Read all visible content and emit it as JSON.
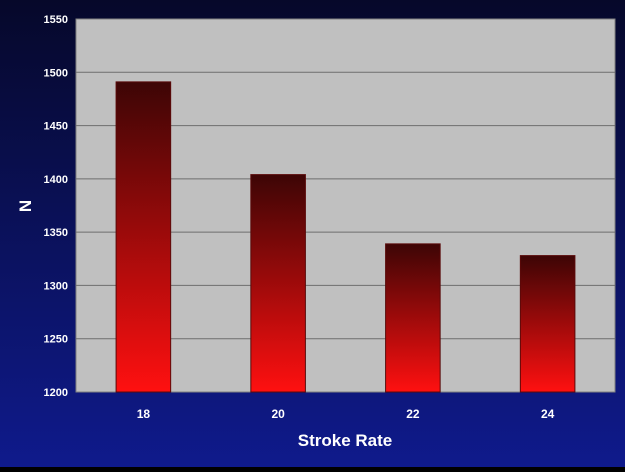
{
  "chart_data": {
    "type": "bar",
    "categories": [
      "18",
      "20",
      "22",
      "24"
    ],
    "values": [
      1491,
      1404,
      1339,
      1328
    ],
    "title": "",
    "xlabel": "Stroke Rate",
    "ylabel": "N",
    "ylim": [
      1200,
      1550
    ],
    "yticks": [
      1200,
      1250,
      1300,
      1350,
      1400,
      1450,
      1500,
      1550
    ],
    "grid": true,
    "legend": "none",
    "colors": {
      "bar_top": "#3d0505",
      "bar_bottom": "#ff1010",
      "plot_background": "#c0c0c0",
      "frame_top": "#06082a",
      "frame_bottom": "#0f1a8c",
      "axis_text": "#ffffff"
    }
  }
}
